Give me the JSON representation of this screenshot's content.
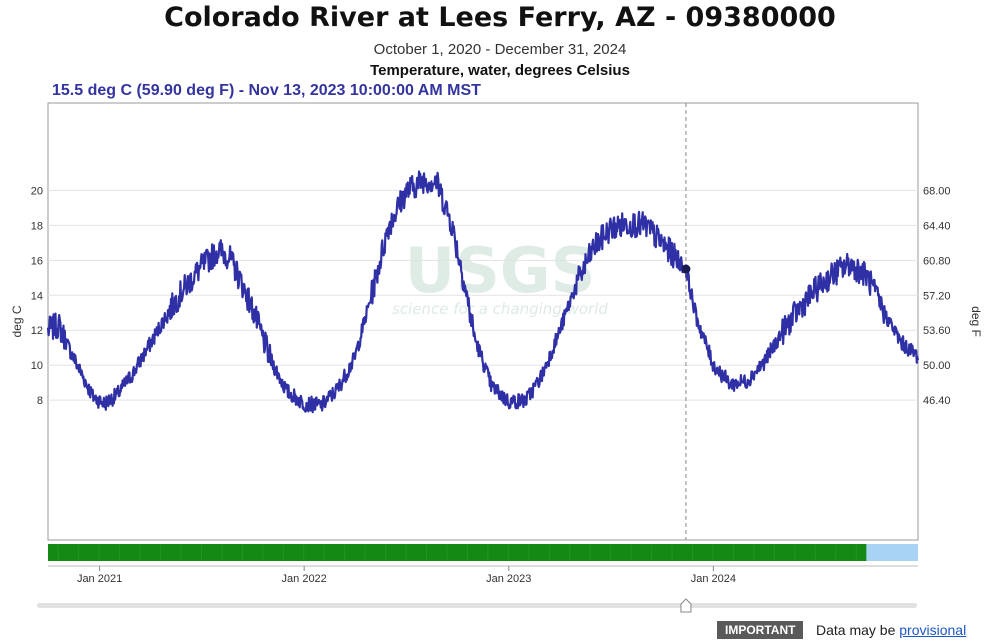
{
  "header": {
    "title": "Colorado River at Lees Ferry, AZ - 09380000",
    "subtitle": "October 1, 2020 - December 31, 2024",
    "parameter": "Temperature, water, degrees Celsius",
    "readout": "15.5 deg C (59.90 deg F) - Nov 13, 2023 10:00:00 AM MST"
  },
  "watermark": {
    "text": "USGS",
    "tagline": "science for a changing world"
  },
  "footer": {
    "badge": "IMPORTANT",
    "note_prefix": "Data may be",
    "link": "provisional"
  },
  "colors": {
    "series": "#2f2fa6",
    "approved": "#148a14",
    "provisional": "#a9d3f5",
    "readout": "#3434a0"
  },
  "chart_data": {
    "type": "line",
    "xlim": [
      "2020-10-01",
      "2024-12-31"
    ],
    "ylim_left": [
      0,
      25
    ],
    "ylabel_left": "deg C",
    "ylabel_right": "deg F",
    "yticks_left": [
      8,
      10,
      12,
      14,
      16,
      18,
      20
    ],
    "yticks_right": [
      "46.40",
      "50.00",
      "53.60",
      "57.20",
      "60.80",
      "64.40",
      "68.00"
    ],
    "xticks": [
      {
        "date": "2021-01-01",
        "label": "Jan 2021"
      },
      {
        "date": "2022-01-01",
        "label": "Jan 2022"
      },
      {
        "date": "2023-01-01",
        "label": "Jan 2023"
      },
      {
        "date": "2024-01-01",
        "label": "Jan 2024"
      }
    ],
    "cursor_date": "2023-11-13",
    "cursor_value": 15.5,
    "grid": true,
    "approval_bar": [
      {
        "status": "approved",
        "start": "2020-10-01",
        "end": "2024-09-30"
      },
      {
        "status": "provisional",
        "start": "2024-09-30",
        "end": "2024-12-31"
      }
    ],
    "series": [
      {
        "color": "#2f2fa6",
        "points": [
          [
            "2020-10-01",
            12.0
          ],
          [
            "2020-10-20",
            12.3
          ],
          [
            "2020-11-10",
            10.8
          ],
          [
            "2020-11-30",
            9.5
          ],
          [
            "2020-12-20",
            8.2
          ],
          [
            "2021-01-10",
            7.8
          ],
          [
            "2021-02-01",
            8.3
          ],
          [
            "2021-03-01",
            9.5
          ],
          [
            "2021-04-01",
            11.2
          ],
          [
            "2021-05-01",
            12.9
          ],
          [
            "2021-06-01",
            14.4
          ],
          [
            "2021-07-01",
            15.6
          ],
          [
            "2021-08-01",
            16.6
          ],
          [
            "2021-08-20",
            16.2
          ],
          [
            "2021-09-10",
            14.8
          ],
          [
            "2021-10-01",
            13.2
          ],
          [
            "2021-11-01",
            10.4
          ],
          [
            "2021-12-01",
            8.5
          ],
          [
            "2022-01-01",
            7.8
          ],
          [
            "2022-02-01",
            7.7
          ],
          [
            "2022-03-01",
            8.6
          ],
          [
            "2022-04-01",
            10.4
          ],
          [
            "2022-05-01",
            14.0
          ],
          [
            "2022-06-01",
            18.0
          ],
          [
            "2022-07-01",
            19.9
          ],
          [
            "2022-08-01",
            20.6
          ],
          [
            "2022-08-25",
            20.5
          ],
          [
            "2022-09-20",
            18.2
          ],
          [
            "2022-10-10",
            15.3
          ],
          [
            "2022-11-01",
            11.6
          ],
          [
            "2022-12-01",
            8.8
          ],
          [
            "2023-01-01",
            7.9
          ],
          [
            "2023-02-01",
            8.0
          ],
          [
            "2023-03-01",
            9.4
          ],
          [
            "2023-04-01",
            11.9
          ],
          [
            "2023-05-01",
            14.6
          ],
          [
            "2023-06-01",
            16.7
          ],
          [
            "2023-07-01",
            17.8
          ],
          [
            "2023-08-01",
            18.1
          ],
          [
            "2023-09-01",
            18.0
          ],
          [
            "2023-10-01",
            17.0
          ],
          [
            "2023-11-13",
            15.5
          ],
          [
            "2023-12-01",
            12.8
          ],
          [
            "2024-01-01",
            10.0
          ],
          [
            "2024-02-01",
            8.9
          ],
          [
            "2024-03-01",
            9.1
          ],
          [
            "2024-04-01",
            10.2
          ],
          [
            "2024-05-01",
            11.8
          ],
          [
            "2024-06-01",
            13.2
          ],
          [
            "2024-07-01",
            14.3
          ],
          [
            "2024-08-01",
            15.2
          ],
          [
            "2024-09-01",
            15.8
          ],
          [
            "2024-10-01",
            15.1
          ],
          [
            "2024-11-01",
            13.0
          ],
          [
            "2024-12-01",
            11.3
          ],
          [
            "2024-12-31",
            10.5
          ]
        ]
      }
    ]
  }
}
